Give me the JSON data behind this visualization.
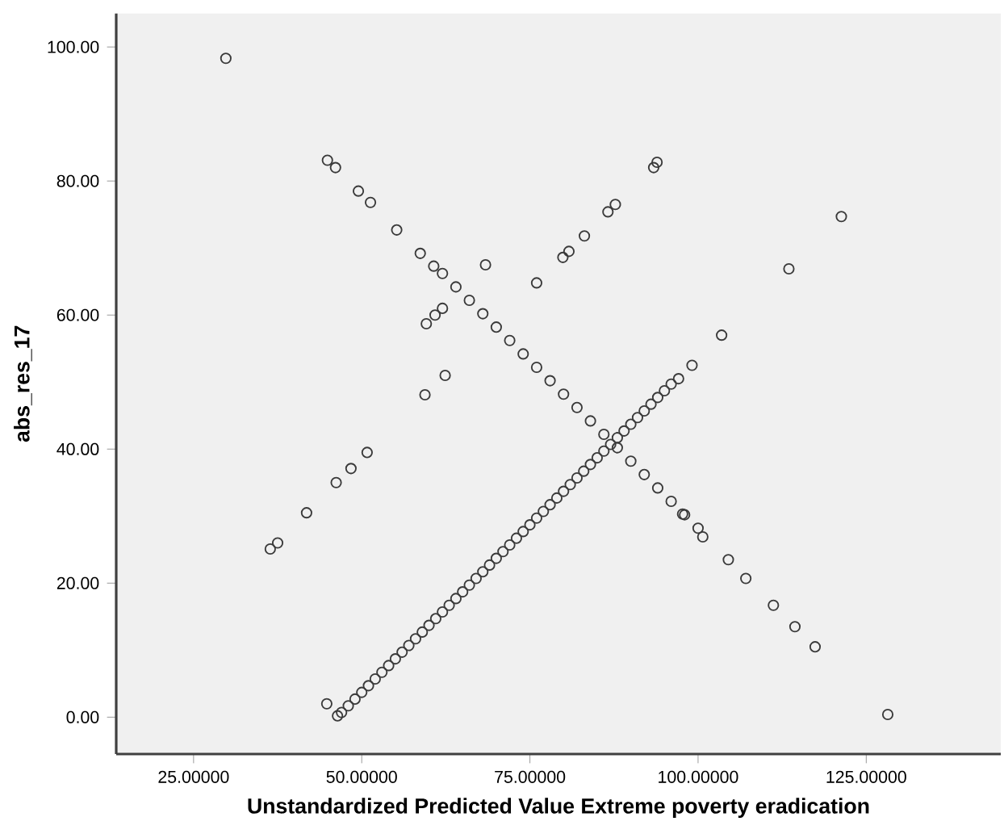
{
  "chart_data": {
    "type": "scatter",
    "xlabel": "Unstandardized Predicted Value Extreme poverty eradication",
    "ylabel": "abs_res_17",
    "marker": "circle",
    "color": "#3a3a3a",
    "grid": false,
    "xlim": [
      13.5,
      145
    ],
    "ylim": [
      -5.5,
      105
    ],
    "xticks": [
      {
        "value": 25,
        "label": "25.00000"
      },
      {
        "value": 50,
        "label": "50.00000"
      },
      {
        "value": 75,
        "label": "75.00000"
      },
      {
        "value": 100,
        "label": "100.00000"
      },
      {
        "value": 125,
        "label": "125.00000"
      }
    ],
    "yticks": [
      {
        "value": 0,
        "label": "0.00"
      },
      {
        "value": 20,
        "label": "20.00"
      },
      {
        "value": 40,
        "label": "40.00"
      },
      {
        "value": 60,
        "label": "60.00"
      },
      {
        "value": 80,
        "label": "80.00"
      },
      {
        "value": 100,
        "label": "100.00"
      }
    ],
    "x": [
      29.8,
      36.4,
      37.5,
      41.8,
      46.2,
      48.4,
      50.8,
      44.8,
      46.4,
      47,
      48,
      49,
      50,
      51,
      52,
      53,
      54,
      55,
      56,
      57,
      58,
      59,
      60,
      61,
      62,
      63,
      64,
      65,
      66,
      67,
      68,
      69,
      70,
      71,
      72,
      73,
      74,
      75,
      76,
      77,
      78,
      79,
      80,
      81,
      82,
      83,
      84,
      85,
      86,
      87,
      88,
      89,
      90,
      91,
      92,
      93,
      94,
      95,
      96,
      97.1,
      99.1,
      103.5,
      59.4,
      62.4,
      59.6,
      60.9,
      62.0,
      68.4,
      76.0,
      79.9,
      80.8,
      83.1,
      86.6,
      87.7,
      93.4,
      93.9,
      113.5,
      121.3,
      44.9,
      46.1,
      49.5,
      51.3,
      55.2,
      58.7,
      60.7,
      62,
      64,
      66,
      68,
      70,
      72,
      74,
      76,
      78,
      80,
      82,
      84,
      86,
      88,
      90,
      92,
      94,
      96,
      98,
      100,
      97.7,
      100.7,
      104.5,
      107.1,
      111.2,
      114.4,
      117.4,
      128.2
    ],
    "values": [
      98.3,
      25.1,
      26.0,
      30.5,
      35.0,
      37.1,
      39.5,
      2.0,
      0.2,
      0.7,
      1.7,
      2.7,
      3.7,
      4.7,
      5.7,
      6.7,
      7.7,
      8.7,
      9.7,
      10.7,
      11.7,
      12.7,
      13.7,
      14.7,
      15.7,
      16.7,
      17.7,
      18.7,
      19.7,
      20.7,
      21.7,
      22.7,
      23.7,
      24.7,
      25.7,
      26.7,
      27.7,
      28.7,
      29.7,
      30.7,
      31.7,
      32.7,
      33.7,
      34.7,
      35.7,
      36.7,
      37.7,
      38.7,
      39.7,
      40.7,
      41.7,
      42.7,
      43.7,
      44.7,
      45.7,
      46.7,
      47.7,
      48.7,
      49.7,
      50.5,
      52.5,
      57.0,
      48.1,
      51.0,
      58.7,
      60.0,
      61.0,
      67.5,
      64.8,
      68.6,
      69.5,
      71.8,
      75.4,
      76.5,
      82.0,
      82.8,
      66.9,
      74.7,
      83.1,
      82.0,
      78.5,
      76.8,
      72.7,
      69.2,
      67.3,
      66.2,
      64.2,
      62.2,
      60.2,
      58.2,
      56.2,
      54.2,
      52.2,
      50.2,
      48.2,
      46.2,
      44.2,
      42.2,
      40.2,
      38.2,
      36.2,
      34.2,
      32.2,
      30.2,
      28.2,
      30.3,
      26.9,
      23.5,
      20.7,
      16.7,
      13.5,
      10.5,
      0.4
    ]
  }
}
